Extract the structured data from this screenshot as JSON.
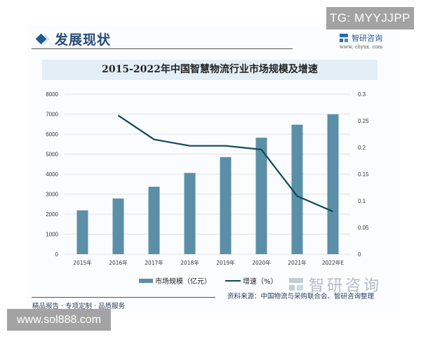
{
  "header": {
    "section_title": "发展现状",
    "logo_name": "智研咨询",
    "logo_url": "www. chyxx. com"
  },
  "overlays": {
    "tg_badge": "TG: MYYJJPP",
    "site_badge": "www.sol888.com"
  },
  "footer": {
    "source": "资料来源：中国物流与采购联合会、智研咨询整理",
    "slogan": "精品报告 · 专项定制 · 品质服务",
    "watermark": "智研咨询"
  },
  "legend": {
    "bar_label": "市场规模（亿元）",
    "line_label": "增速（%）"
  },
  "colors": {
    "bar": "#5b8fa8",
    "line": "#0d4a57",
    "title_band": "#e3eef6",
    "accent": "#1e5a93"
  },
  "chart_data": {
    "type": "bar",
    "title": "2015-2022年中国智慧物流行业市场规模及增速",
    "categories": [
      "2015年",
      "2016年",
      "2017年",
      "2018年",
      "2019年",
      "2020年",
      "2021年",
      "2022年E"
    ],
    "series": [
      {
        "name": "市场规模（亿元）",
        "type": "bar",
        "axis": "left",
        "values": [
          2190,
          2780,
          3370,
          4060,
          4850,
          5820,
          6470,
          6990
        ]
      },
      {
        "name": "增速（%）",
        "type": "line",
        "axis": "right",
        "values": [
          null,
          0.26,
          0.215,
          0.203,
          0.203,
          0.196,
          0.109,
          0.08
        ]
      }
    ],
    "left_axis": {
      "ylim": [
        0,
        8000
      ],
      "ticks": [
        "0",
        "1000",
        "2000",
        "3000",
        "4000",
        "5000",
        "6000",
        "7000",
        "8000"
      ]
    },
    "right_axis": {
      "ylim": [
        0,
        0.3
      ],
      "ticks": [
        "0",
        "0.05",
        "0.1",
        "0.15",
        "0.2",
        "0.25",
        "0.3"
      ]
    },
    "xlabel": "",
    "ylabel": "",
    "grid": true,
    "legend_position": "bottom"
  }
}
